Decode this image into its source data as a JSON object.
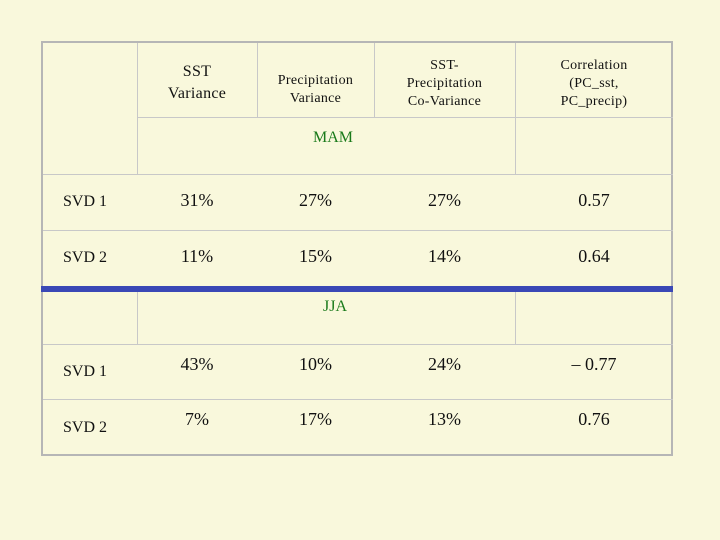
{
  "table": {
    "headers": {
      "sst_variance": [
        "SST",
        "Variance"
      ],
      "precip_variance": [
        "Precipitation",
        "Variance"
      ],
      "covariance": [
        "SST-",
        "Precipitation",
        "Co-Variance"
      ],
      "correlation": [
        "Correlation",
        "(PC_sst,",
        "PC_precip)"
      ]
    },
    "sections": [
      {
        "season": "MAM",
        "rows": [
          {
            "label": "SVD 1",
            "sst_variance": "31%",
            "precip_variance": "27%",
            "covariance": "27%",
            "correlation": "0.57"
          },
          {
            "label": "SVD 2",
            "sst_variance": "11%",
            "precip_variance": "15%",
            "covariance": "14%",
            "correlation": "0.64"
          }
        ]
      },
      {
        "season": "JJA",
        "rows": [
          {
            "label": "SVD 1",
            "sst_variance": "43%",
            "precip_variance": "10%",
            "covariance": "24%",
            "correlation": "– 0.77"
          },
          {
            "label": "SVD 2",
            "sst_variance": "7%",
            "precip_variance": "17%",
            "covariance": "13%",
            "correlation": "0.76"
          }
        ]
      }
    ]
  },
  "colors": {
    "background": "#f9f8dc",
    "divider": "#3a48b6",
    "season_label": "#1a7a1a"
  }
}
